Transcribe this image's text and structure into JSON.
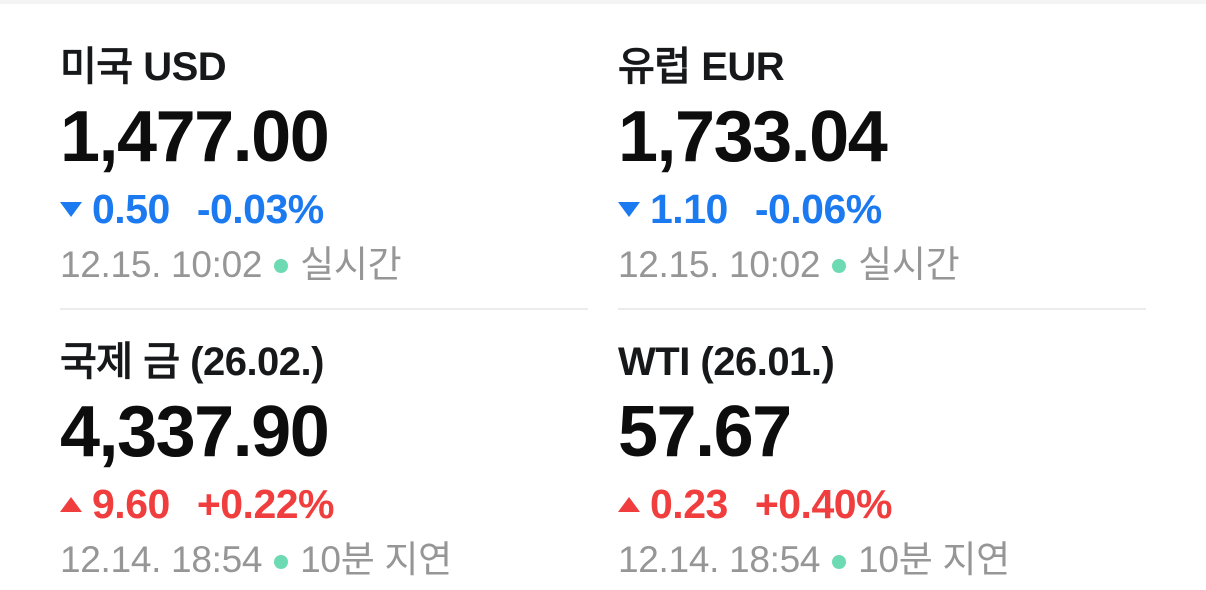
{
  "colors": {
    "background": "#ffffff",
    "title_text": "#17181a",
    "price_text": "#0d0d0d",
    "down_blue": "#1c7af0",
    "up_red": "#f03e3e",
    "meta_gray": "#969696",
    "status_dot_mint": "#6cdab2",
    "divider_gray": "#ececec",
    "top_strip_gray": "#f4f4f5"
  },
  "cards": [
    {
      "title": "미국 USD",
      "price": "1,477.00",
      "direction": "down",
      "change_value": "0.50",
      "change_percent": "-0.03%",
      "timestamp": "12.15. 10:02",
      "status_label": "실시간"
    },
    {
      "title": "유럽 EUR",
      "price": "1,733.04",
      "direction": "down",
      "change_value": "1.10",
      "change_percent": "-0.06%",
      "timestamp": "12.15. 10:02",
      "status_label": "실시간"
    },
    {
      "title": "국제 금 (26.02.)",
      "price": "4,337.90",
      "direction": "up",
      "change_value": "9.60",
      "change_percent": "+0.22%",
      "timestamp": "12.14. 18:54",
      "status_label": "10분 지연"
    },
    {
      "title": "WTI (26.01.)",
      "price": "57.67",
      "direction": "up",
      "change_value": "0.23",
      "change_percent": "+0.40%",
      "timestamp": "12.14. 18:54",
      "status_label": "10분 지연"
    }
  ]
}
